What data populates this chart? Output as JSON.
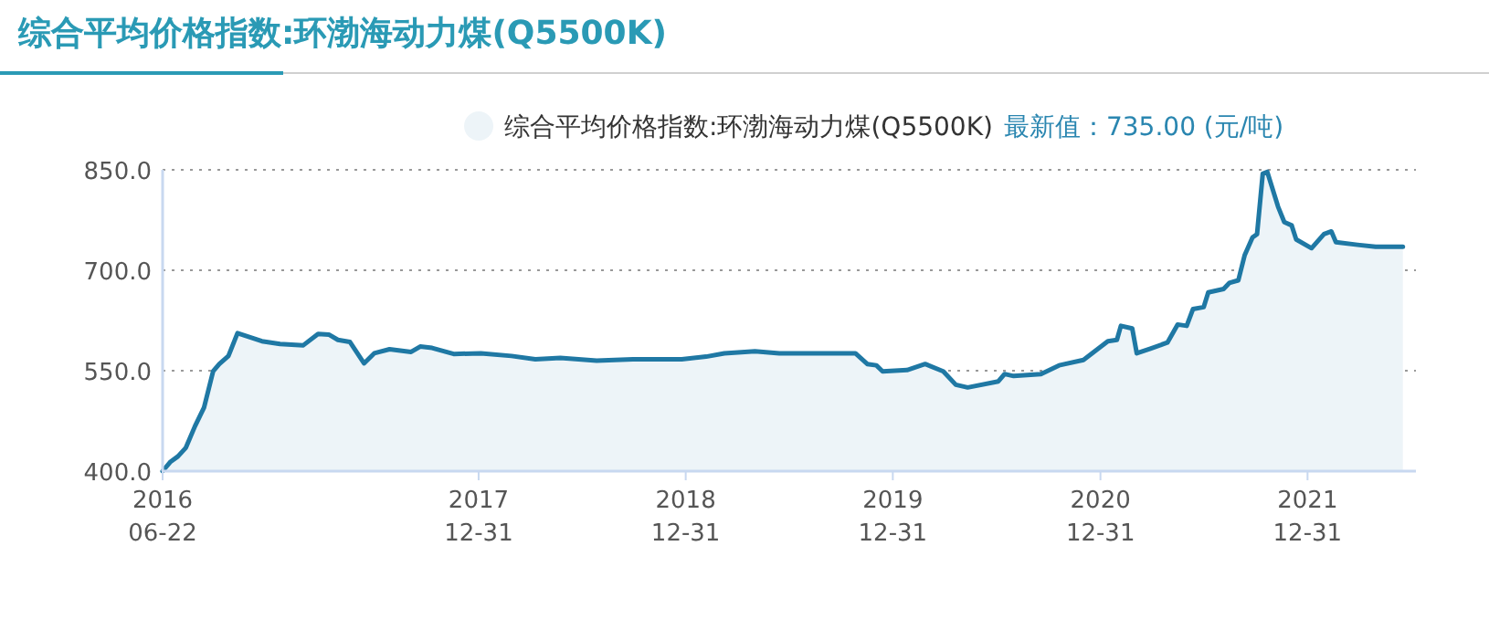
{
  "chart_data": {
    "type": "area",
    "title": "综合平均价格指数:环渤海动力煤(Q5500K)",
    "annotations": [
      "最新值：735.00 (元/吨)"
    ],
    "legend": "top",
    "grid": "y",
    "line_style": "solid",
    "marker": "none",
    "xlim": [
      "2016-06-22",
      "2022-07-10"
    ],
    "xticks": [
      {
        "value": "2016-06-22",
        "label": "2016\n06-22"
      },
      {
        "value": "2017-12-31",
        "label": "2017\n12-31"
      },
      {
        "value": "2018-12-31",
        "label": "2018\n12-31"
      },
      {
        "value": "2019-12-31",
        "label": "2019\n12-31"
      },
      {
        "value": "2020-12-31",
        "label": "2020\n12-31"
      },
      {
        "value": "2021-12-31",
        "label": "2021\n12-31"
      }
    ],
    "ylim": [
      400,
      850
    ],
    "yticks": [
      {
        "value": 400,
        "label": "400.0"
      },
      {
        "value": 550,
        "label": "550.0"
      },
      {
        "value": 700,
        "label": "700.0"
      },
      {
        "value": 850,
        "label": "850.0"
      }
    ],
    "series": [
      {
        "name": "综合平均价格指数:环渤海动力煤(Q5500K)",
        "color": "#1f78a4",
        "x": [
          "2016-06-22",
          "2016-07-06",
          "2016-07-19",
          "2016-08-02",
          "2016-08-18",
          "2016-09-03",
          "2016-09-19",
          "2016-09-30",
          "2016-10-16",
          "2016-11-01",
          "2016-12-14",
          "2017-01-15",
          "2017-02-25",
          "2017-03-23",
          "2017-04-11",
          "2017-04-27",
          "2017-05-18",
          "2017-06-12",
          "2017-06-30",
          "2017-07-27",
          "2017-09-03",
          "2017-09-19",
          "2017-10-10",
          "2017-11-17",
          "2018-01-04",
          "2018-02-27",
          "2018-04-10",
          "2018-05-24",
          "2018-07-27",
          "2018-09-29",
          "2018-12-24",
          "2019-02-05",
          "2019-03-09",
          "2019-05-02",
          "2019-06-14",
          "2019-07-27",
          "2019-08-28",
          "2019-10-26",
          "2019-11-16",
          "2019-12-02",
          "2019-12-13",
          "2020-01-25",
          "2020-02-26",
          "2020-03-29",
          "2020-04-20",
          "2020-05-11",
          "2020-07-04",
          "2020-07-15",
          "2020-07-31",
          "2020-09-17",
          "2020-10-19",
          "2020-12-01",
          "2021-01-13",
          "2021-01-29",
          "2021-02-05",
          "2021-02-25",
          "2021-03-05",
          "2021-03-29",
          "2021-04-28",
          "2021-05-16",
          "2021-06-01",
          "2021-06-12",
          "2021-07-01",
          "2021-07-09",
          "2021-08-05",
          "2021-08-15",
          "2021-08-31",
          "2021-09-11",
          "2021-09-25",
          "2021-10-03",
          "2021-10-13",
          "2021-10-21",
          "2021-11-09",
          "2021-11-20",
          "2021-12-03",
          "2021-12-11",
          "2022-01-07",
          "2022-01-29",
          "2022-02-11",
          "2022-02-19",
          "2022-03-29",
          "2022-04-30",
          "2022-06-17"
        ],
        "values": [
          400,
          414,
          422,
          435,
          467,
          495,
          549,
          560,
          572,
          606,
          594,
          590,
          588,
          605,
          604,
          596,
          593,
          561,
          576,
          582,
          578,
          586,
          584,
          575,
          576,
          572,
          567,
          569,
          565,
          567,
          567,
          571,
          576,
          579,
          576,
          576,
          576,
          576,
          560,
          558,
          549,
          551,
          560,
          549,
          529,
          525,
          534,
          545,
          542,
          545,
          558,
          566,
          594,
          596,
          617,
          613,
          576,
          583,
          592,
          619,
          617,
          642,
          645,
          667,
          672,
          681,
          685,
          722,
          749,
          754,
          844,
          847,
          795,
          772,
          767,
          746,
          733,
          754,
          758,
          742,
          738,
          735,
          735
        ]
      }
    ]
  }
}
